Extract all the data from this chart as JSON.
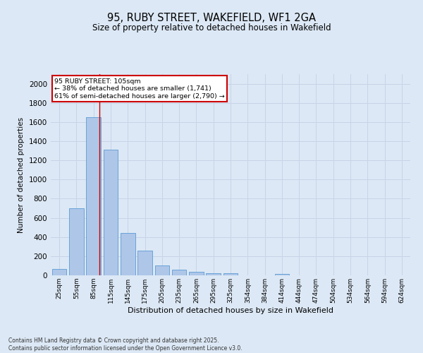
{
  "title": "95, RUBY STREET, WAKEFIELD, WF1 2GA",
  "subtitle": "Size of property relative to detached houses in Wakefield",
  "xlabel": "Distribution of detached houses by size in Wakefield",
  "ylabel": "Number of detached properties",
  "categories": [
    "25sqm",
    "55sqm",
    "85sqm",
    "115sqm",
    "145sqm",
    "175sqm",
    "205sqm",
    "235sqm",
    "265sqm",
    "295sqm",
    "325sqm",
    "354sqm",
    "384sqm",
    "414sqm",
    "444sqm",
    "474sqm",
    "504sqm",
    "534sqm",
    "564sqm",
    "594sqm",
    "624sqm"
  ],
  "values": [
    70,
    700,
    1650,
    1310,
    445,
    255,
    100,
    58,
    35,
    25,
    20,
    0,
    0,
    15,
    0,
    0,
    0,
    0,
    0,
    0,
    0
  ],
  "bar_color": "#aec6e8",
  "bar_edge_color": "#5b9bd5",
  "grid_color": "#c8d4e8",
  "background_color": "#dce8f5",
  "annotation_text_line1": "95 RUBY STREET: 105sqm",
  "annotation_text_line2": "← 38% of detached houses are smaller (1,741)",
  "annotation_text_line3": "61% of semi-detached houses are larger (2,790) →",
  "annotation_box_facecolor": "#ffffff",
  "annotation_box_edgecolor": "#cc0000",
  "red_line_x": 2.33,
  "ylim": [
    0,
    2100
  ],
  "yticks": [
    0,
    200,
    400,
    600,
    800,
    1000,
    1200,
    1400,
    1600,
    1800,
    2000
  ],
  "footer_line1": "Contains HM Land Registry data © Crown copyright and database right 2025.",
  "footer_line2": "Contains public sector information licensed under the Open Government Licence v3.0."
}
